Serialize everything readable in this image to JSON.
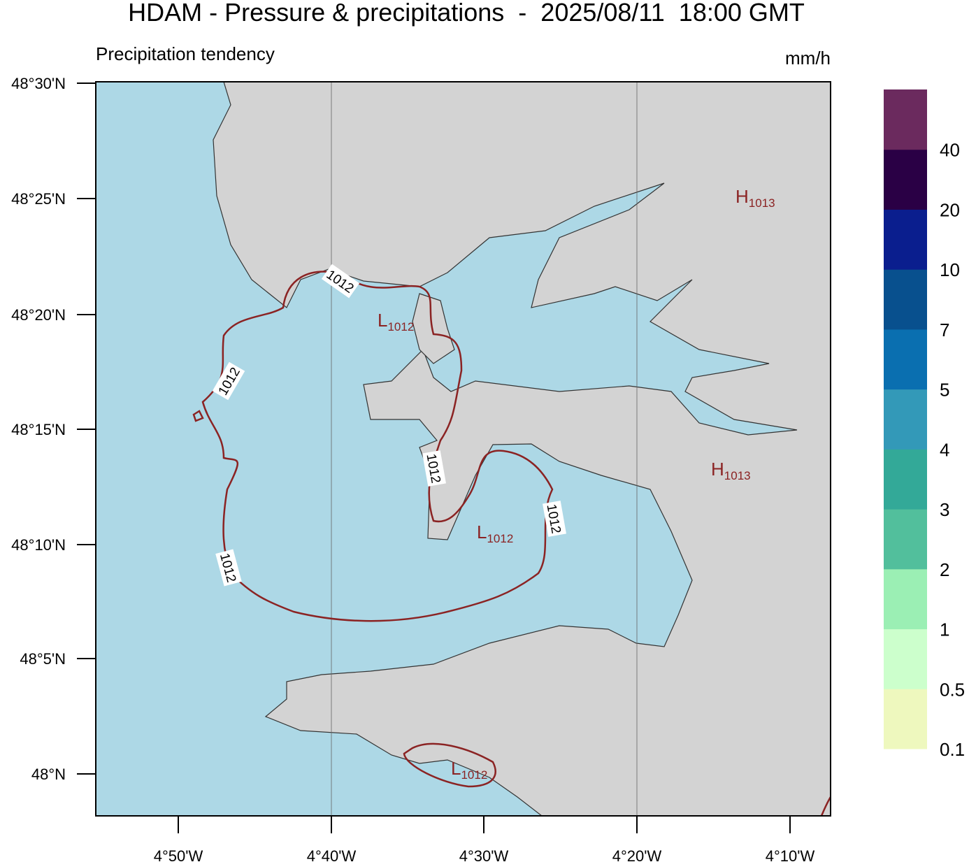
{
  "header": {
    "title": "HDAM - Pressure & precipitations  -  2025/08/11  18:00 GMT",
    "subtitle": "Precipitation tendency",
    "unit": "mm/h"
  },
  "map": {
    "sea_color": "#add8e6",
    "land_color": "#d3d3d3",
    "contour_color": "#8b2323",
    "lat_ticks": [
      "48°30'N",
      "48°25'N",
      "48°20'N",
      "48°15'N",
      "48°10'N",
      "48°5'N",
      "48°N"
    ],
    "lon_ticks": [
      "4°50'W",
      "4°40'W",
      "4°30'W",
      "4°20'W",
      "4°10'W"
    ],
    "contour_labels": [
      "1012",
      "1012",
      "1012",
      "1012",
      "1012"
    ],
    "pressure_centers": [
      {
        "letter": "H",
        "value": "1013"
      },
      {
        "letter": "L",
        "value": "1012"
      },
      {
        "letter": "H",
        "value": "1013"
      },
      {
        "letter": "L",
        "value": "1012"
      },
      {
        "letter": "L",
        "value": "1012"
      }
    ]
  },
  "colorbar": {
    "colors": [
      "#eef8be",
      "#ccffcc",
      "#9befb4",
      "#52bf9c",
      "#33a998",
      "#3399b8",
      "#0a6fb0",
      "#08508e",
      "#0a1e8e",
      "#2a0045",
      "#6b2a5e"
    ],
    "labels": [
      "0.1",
      "0.5",
      "1",
      "2",
      "3",
      "4",
      "5",
      "7",
      "10",
      "20",
      "40"
    ]
  }
}
